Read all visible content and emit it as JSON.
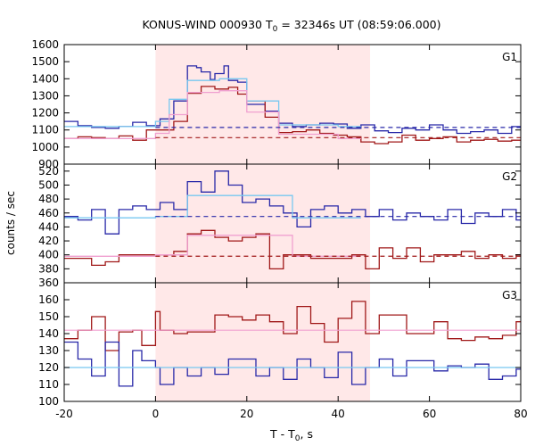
{
  "chart_data": {
    "type": "line",
    "title": "KONUS-WIND 000930 T",
    "title_sub": "0",
    "title_rest": " = 32346s UT (08:59:06.000)",
    "ylabel": "counts / sec",
    "xlabel_main": "T - T",
    "xlabel_sub": "0",
    "xlabel_rest": ", s",
    "xlim": [
      -20,
      80
    ],
    "xticks": [
      -20,
      0,
      20,
      40,
      60,
      80
    ],
    "highlight": {
      "x0": 0,
      "x1": 47,
      "color": "#ffe8e8"
    },
    "colors": {
      "blue": "#2828a8",
      "red": "#a01818",
      "lightblue": "#78c8f0",
      "pink": "#f0a0d0"
    },
    "panels": [
      {
        "name": "G1",
        "ylim": [
          900,
          1600
        ],
        "yticks": [
          900,
          1000,
          1100,
          1200,
          1300,
          1400,
          1500,
          1600
        ],
        "series": [
          {
            "color": "blue",
            "type": "step",
            "x": [
              -20,
              -17,
              -14,
              -11,
              -8,
              -5,
              -2,
              1,
              4,
              7,
              9,
              10,
              12,
              13,
              15,
              16,
              18,
              20,
              24,
              27,
              30,
              33,
              36,
              39,
              42,
              45,
              48,
              51,
              54,
              57,
              60,
              63,
              66,
              69,
              72,
              75,
              78,
              80
            ],
            "y": [
              1150,
              1125,
              1115,
              1110,
              1120,
              1145,
              1125,
              1165,
              1270,
              1475,
              1465,
              1440,
              1395,
              1430,
              1475,
              1390,
              1380,
              1250,
              1210,
              1140,
              1120,
              1130,
              1140,
              1135,
              1110,
              1130,
              1095,
              1085,
              1110,
              1100,
              1130,
              1100,
              1080,
              1090,
              1100,
              1080,
              1120,
              1120
            ]
          },
          {
            "color": "red",
            "type": "step",
            "x": [
              -20,
              -17,
              -14,
              -11,
              -8,
              -5,
              -2,
              1,
              4,
              7,
              10,
              13,
              16,
              18,
              20,
              24,
              27,
              30,
              33,
              36,
              39,
              42,
              45,
              48,
              51,
              54,
              57,
              60,
              63,
              66,
              69,
              72,
              75,
              78,
              80
            ],
            "y": [
              1050,
              1060,
              1055,
              1050,
              1065,
              1040,
              1100,
              1100,
              1150,
              1315,
              1355,
              1340,
              1350,
              1310,
              1270,
              1175,
              1085,
              1090,
              1100,
              1080,
              1070,
              1060,
              1030,
              1020,
              1030,
              1070,
              1040,
              1050,
              1060,
              1030,
              1040,
              1045,
              1035,
              1040,
              1040
            ]
          },
          {
            "color": "lightblue",
            "type": "step",
            "x": [
              -20,
              0,
              3,
              7,
              14,
              20,
              27,
              40,
              45
            ],
            "y": [
              1120,
              1150,
              1280,
              1390,
              1400,
              1270,
              1130,
              1120,
              1120
            ]
          },
          {
            "color": "pink",
            "type": "step",
            "x": [
              -20,
              0,
              3,
              7,
              14,
              20,
              27,
              40,
              45
            ],
            "y": [
              1050,
              1080,
              1190,
              1320,
              1330,
              1205,
              1075,
              1050,
              1050
            ]
          },
          {
            "color": "blue",
            "type": "dashed",
            "x": [
              0,
              80
            ],
            "y": [
              1115,
              1115
            ]
          },
          {
            "color": "red",
            "type": "dashed",
            "x": [
              0,
              80
            ],
            "y": [
              1055,
              1055
            ]
          }
        ]
      },
      {
        "name": "G2",
        "ylim": [
          360,
          530
        ],
        "yticks": [
          360,
          380,
          400,
          420,
          440,
          460,
          480,
          500,
          520
        ],
        "series": [
          {
            "color": "blue",
            "type": "step",
            "x": [
              -20,
              -17,
              -14,
              -11,
              -8,
              -5,
              -2,
              1,
              4,
              7,
              10,
              13,
              16,
              19,
              22,
              25,
              28,
              31,
              34,
              37,
              40,
              43,
              46,
              49,
              52,
              55,
              58,
              61,
              64,
              67,
              70,
              73,
              76,
              79,
              80
            ],
            "y": [
              455,
              450,
              465,
              430,
              465,
              470,
              465,
              475,
              465,
              505,
              490,
              520,
              500,
              475,
              480,
              470,
              460,
              440,
              465,
              470,
              460,
              465,
              455,
              465,
              450,
              460,
              455,
              450,
              465,
              445,
              460,
              455,
              465,
              450,
              450
            ]
          },
          {
            "color": "red",
            "type": "step",
            "x": [
              -20,
              -17,
              -14,
              -11,
              -8,
              -5,
              -2,
              1,
              4,
              7,
              10,
              13,
              16,
              19,
              22,
              25,
              28,
              31,
              34,
              37,
              40,
              43,
              46,
              49,
              52,
              55,
              58,
              61,
              64,
              67,
              70,
              73,
              76,
              79,
              80
            ],
            "y": [
              395,
              395,
              385,
              390,
              400,
              400,
              400,
              400,
              405,
              430,
              435,
              425,
              420,
              425,
              430,
              380,
              400,
              400,
              395,
              395,
              395,
              400,
              380,
              410,
              395,
              410,
              390,
              400,
              400,
              405,
              395,
              400,
              395,
              400,
              400
            ]
          },
          {
            "color": "lightblue",
            "type": "step",
            "x": [
              -20,
              0,
              7,
              15,
              22,
              30,
              40,
              45
            ],
            "y": [
              453,
              455,
              485,
              485,
              485,
              453,
              453,
              453
            ]
          },
          {
            "color": "pink",
            "type": "step",
            "x": [
              -20,
              0,
              7,
              15,
              22,
              30,
              40,
              45
            ],
            "y": [
              398,
              400,
              428,
              428,
              428,
              398,
              398,
              398
            ]
          },
          {
            "color": "blue",
            "type": "dashed",
            "x": [
              0,
              80
            ],
            "y": [
              455,
              455
            ]
          },
          {
            "color": "red",
            "type": "dashed",
            "x": [
              0,
              80
            ],
            "y": [
              398,
              398
            ]
          }
        ]
      },
      {
        "name": "G3",
        "ylim": [
          100,
          170
        ],
        "yticks": [
          100,
          110,
          120,
          130,
          140,
          150,
          160
        ],
        "series": [
          {
            "color": "red",
            "type": "step",
            "x": [
              -20,
              -17,
              -14,
              -11,
              -8,
              -5,
              -3,
              0,
              1,
              4,
              7,
              10,
              13,
              16,
              19,
              22,
              25,
              28,
              31,
              34,
              37,
              40,
              43,
              46,
              49,
              52,
              55,
              58,
              61,
              64,
              67,
              70,
              73,
              76,
              79,
              80
            ],
            "y": [
              137,
              142,
              150,
              130,
              141,
              142,
              133,
              153,
              142,
              140,
              141,
              141,
              151,
              150,
              148,
              151,
              147,
              140,
              156,
              146,
              135,
              149,
              159,
              140,
              151,
              151,
              140,
              140,
              147,
              137,
              136,
              138,
              137,
              139,
              147,
              147
            ]
          },
          {
            "color": "blue",
            "type": "step",
            "x": [
              -20,
              -17,
              -14,
              -11,
              -8,
              -5,
              -3,
              0,
              1,
              4,
              7,
              10,
              13,
              16,
              19,
              22,
              25,
              28,
              31,
              34,
              37,
              40,
              43,
              46,
              49,
              52,
              55,
              58,
              61,
              64,
              67,
              70,
              73,
              76,
              79,
              80
            ],
            "y": [
              135,
              125,
              115,
              135,
              109,
              130,
              124,
              120,
              110,
              120,
              115,
              120,
              116,
              125,
              125,
              115,
              120,
              113,
              125,
              120,
              114,
              129,
              110,
              120,
              125,
              115,
              124,
              124,
              118,
              121,
              120,
              122,
              113,
              115,
              119,
              119
            ]
          },
          {
            "color": "pink",
            "type": "hline",
            "x": [
              -20,
              80
            ],
            "y": [
              142,
              142
            ]
          },
          {
            "color": "lightblue",
            "type": "hline",
            "x": [
              -20,
              80
            ],
            "y": [
              120,
              120
            ]
          }
        ]
      }
    ]
  }
}
